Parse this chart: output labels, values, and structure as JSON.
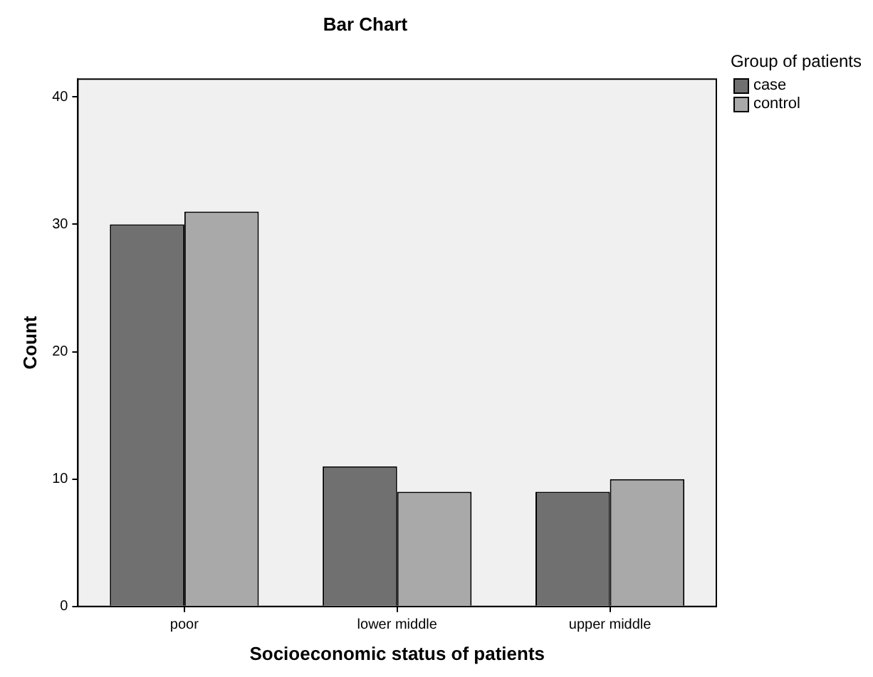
{
  "chart_data": {
    "type": "bar",
    "title": "Bar Chart",
    "xlabel": "Socioeconomic status of patients",
    "ylabel": "Count",
    "legend_title": "Group of patients",
    "categories": [
      "poor",
      "lower middle",
      "upper middle"
    ],
    "series": [
      {
        "name": "case",
        "color": "#707070",
        "values": [
          30,
          11,
          9
        ]
      },
      {
        "name": "control",
        "color": "#a9a9a9",
        "values": [
          31,
          9,
          10
        ]
      }
    ],
    "ylim": [
      0,
      41.4
    ],
    "yticks": [
      0,
      10,
      20,
      30,
      40
    ],
    "legend": "top right"
  }
}
